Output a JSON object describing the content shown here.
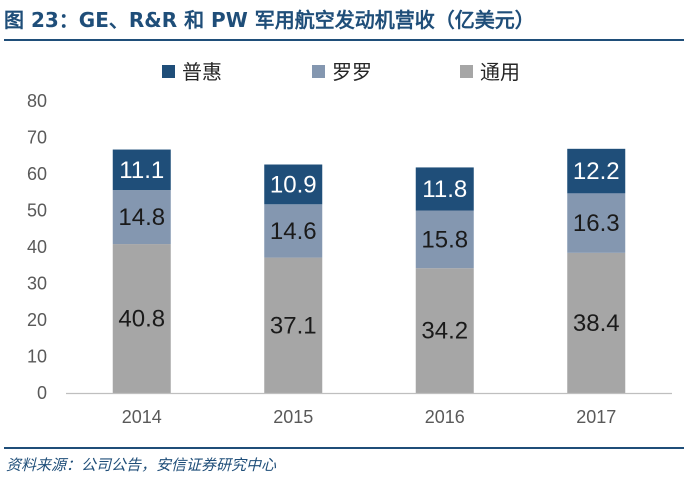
{
  "figure": {
    "title": "图 23：GE、R&R 和 PW 军用航空发动机营收（亿美元）",
    "source": "资料来源：公司公告，安信证券研究中心"
  },
  "chart_data": {
    "type": "bar",
    "stacked": true,
    "categories": [
      "2014",
      "2015",
      "2016",
      "2017"
    ],
    "series": [
      {
        "name": "通用",
        "values": [
          40.8,
          37.1,
          34.2,
          38.4
        ],
        "color": "#a6a6a6",
        "label_color": "#1a1a1a"
      },
      {
        "name": "罗罗",
        "values": [
          14.8,
          14.6,
          15.8,
          16.3
        ],
        "color": "#8497b0",
        "label_color": "#1a1a1a"
      },
      {
        "name": "普惠",
        "values": [
          11.1,
          10.9,
          11.8,
          12.2
        ],
        "color": "#1f4e79",
        "label_color": "#ffffff"
      }
    ],
    "legend_order": [
      "普惠",
      "罗罗",
      "通用"
    ],
    "legend_position": "top",
    "ylim": [
      0,
      80
    ],
    "yticks": [
      0,
      10,
      20,
      30,
      40,
      50,
      60,
      70,
      80
    ],
    "grid": false
  }
}
